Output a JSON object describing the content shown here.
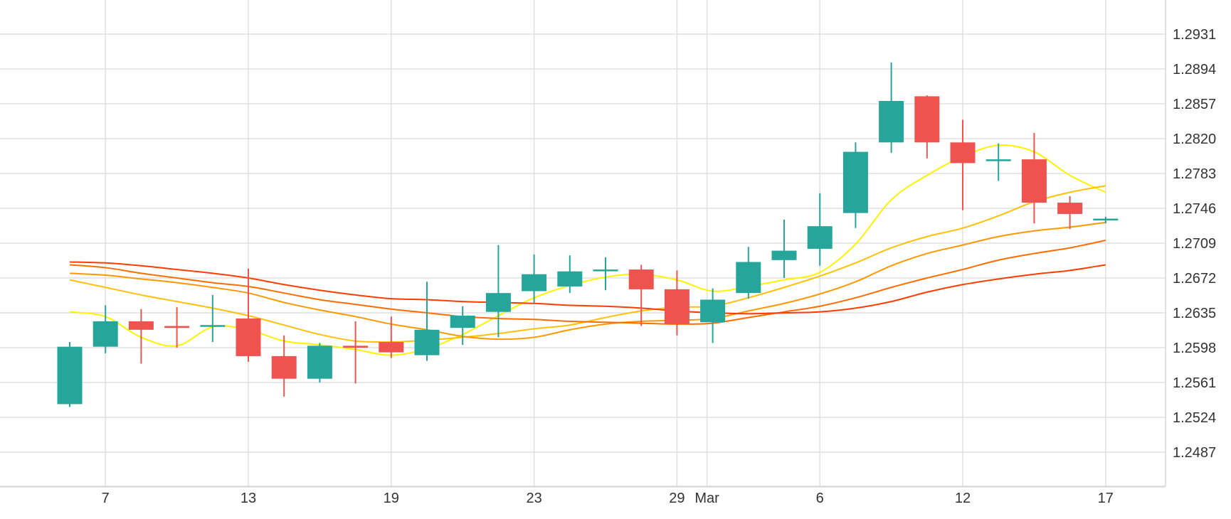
{
  "chart_data": {
    "type": "candlestick",
    "title": "",
    "xlabel": "",
    "ylabel": "",
    "ylim": [
      1.2447,
      1.2977
    ],
    "y_ticks": [
      "1.2931",
      "1.2894",
      "1.2857",
      "1.2820",
      "1.2783",
      "1.2746",
      "1.2709",
      "1.2672",
      "1.2635",
      "1.2598",
      "1.2561",
      "1.2524",
      "1.2487"
    ],
    "x_ticks": [
      {
        "label": "7",
        "index": 1
      },
      {
        "label": "13",
        "index": 5
      },
      {
        "label": "19",
        "index": 9
      },
      {
        "label": "23",
        "index": 13
      },
      {
        "label": "29",
        "index": 17
      },
      {
        "label": "Mar",
        "index": 18
      },
      {
        "label": "6",
        "index": 21
      },
      {
        "label": "12",
        "index": 25
      },
      {
        "label": "17",
        "index": 29
      }
    ],
    "grid": true,
    "colors": {
      "up": "#26a69a",
      "down": "#ef5350",
      "grid": "#e0e0e0"
    },
    "candles": [
      {
        "o": 1.2538,
        "h": 1.2604,
        "l": 1.2535,
        "c": 1.2599
      },
      {
        "o": 1.2599,
        "h": 1.2643,
        "l": 1.2592,
        "c": 1.2626
      },
      {
        "o": 1.2626,
        "h": 1.2639,
        "l": 1.2581,
        "c": 1.2617
      },
      {
        "o": 1.2621,
        "h": 1.2641,
        "l": 1.2598,
        "c": 1.2619
      },
      {
        "o": 1.2622,
        "h": 1.2654,
        "l": 1.2604,
        "c": 1.2622
      },
      {
        "o": 1.2629,
        "h": 1.2682,
        "l": 1.2583,
        "c": 1.2589
      },
      {
        "o": 1.2589,
        "h": 1.2611,
        "l": 1.2546,
        "c": 1.2565
      },
      {
        "o": 1.2565,
        "h": 1.2603,
        "l": 1.2561,
        "c": 1.26
      },
      {
        "o": 1.26,
        "h": 1.2626,
        "l": 1.256,
        "c": 1.2598
      },
      {
        "o": 1.2604,
        "h": 1.2631,
        "l": 1.2587,
        "c": 1.2593
      },
      {
        "o": 1.259,
        "h": 1.2668,
        "l": 1.2584,
        "c": 1.2617
      },
      {
        "o": 1.2619,
        "h": 1.2642,
        "l": 1.2601,
        "c": 1.2632
      },
      {
        "o": 1.2636,
        "h": 1.2707,
        "l": 1.2609,
        "c": 1.2656
      },
      {
        "o": 1.2658,
        "h": 1.2697,
        "l": 1.2645,
        "c": 1.2676
      },
      {
        "o": 1.2663,
        "h": 1.2696,
        "l": 1.2656,
        "c": 1.2679
      },
      {
        "o": 1.2681,
        "h": 1.2694,
        "l": 1.2659,
        "c": 1.2681
      },
      {
        "o": 1.2681,
        "h": 1.2686,
        "l": 1.2621,
        "c": 1.266
      },
      {
        "o": 1.266,
        "h": 1.268,
        "l": 1.2611,
        "c": 1.2623
      },
      {
        "o": 1.2625,
        "h": 1.2661,
        "l": 1.2603,
        "c": 1.2649
      },
      {
        "o": 1.2656,
        "h": 1.2705,
        "l": 1.265,
        "c": 1.2689
      },
      {
        "o": 1.2691,
        "h": 1.2734,
        "l": 1.2672,
        "c": 1.2701
      },
      {
        "o": 1.2703,
        "h": 1.2762,
        "l": 1.2685,
        "c": 1.2727
      },
      {
        "o": 1.2741,
        "h": 1.2816,
        "l": 1.2725,
        "c": 1.2806
      },
      {
        "o": 1.2816,
        "h": 1.2901,
        "l": 1.2805,
        "c": 1.286
      },
      {
        "o": 1.2865,
        "h": 1.2866,
        "l": 1.2799,
        "c": 1.2816
      },
      {
        "o": 1.2816,
        "h": 1.284,
        "l": 1.2744,
        "c": 1.2794
      },
      {
        "o": 1.2798,
        "h": 1.2815,
        "l": 1.2775,
        "c": 1.2798
      },
      {
        "o": 1.2798,
        "h": 1.2826,
        "l": 1.273,
        "c": 1.2752
      },
      {
        "o": 1.2752,
        "h": 1.2759,
        "l": 1.2724,
        "c": 1.274
      },
      {
        "o": 1.2734,
        "h": 1.2737,
        "l": 1.273,
        "c": 1.2735
      }
    ],
    "series": [
      {
        "color": "#fff200",
        "points": [
          [
            0,
            1.2636
          ],
          [
            1,
            1.2631
          ],
          [
            2,
            1.2609
          ],
          [
            3,
            1.26
          ],
          [
            4,
            1.262
          ],
          [
            5,
            1.2617
          ],
          [
            6,
            1.2605
          ],
          [
            7,
            1.2601
          ],
          [
            8,
            1.2596
          ],
          [
            9,
            1.259
          ],
          [
            10,
            1.2597
          ],
          [
            11,
            1.2612
          ],
          [
            12,
            1.2632
          ],
          [
            13,
            1.2651
          ],
          [
            14,
            1.2664
          ],
          [
            15,
            1.2673
          ],
          [
            16,
            1.2676
          ],
          [
            17,
            1.267
          ],
          [
            18,
            1.2658
          ],
          [
            19,
            1.2663
          ],
          [
            20,
            1.267
          ],
          [
            21,
            1.2678
          ],
          [
            22,
            1.2708
          ],
          [
            23,
            1.2755
          ],
          [
            24,
            1.2781
          ],
          [
            25,
            1.2801
          ],
          [
            26,
            1.2813
          ],
          [
            27,
            1.2806
          ],
          [
            28,
            1.2781
          ],
          [
            29,
            1.2763
          ]
        ]
      },
      {
        "color": "#ffc107",
        "points": [
          [
            0,
            1.267
          ],
          [
            1,
            1.2662
          ],
          [
            2,
            1.2654
          ],
          [
            3,
            1.2647
          ],
          [
            4,
            1.264
          ],
          [
            5,
            1.2632
          ],
          [
            6,
            1.2622
          ],
          [
            7,
            1.2612
          ],
          [
            8,
            1.2605
          ],
          [
            9,
            1.2604
          ],
          [
            10,
            1.2606
          ],
          [
            11,
            1.2609
          ],
          [
            12,
            1.2613
          ],
          [
            13,
            1.2618
          ],
          [
            14,
            1.2622
          ],
          [
            15,
            1.263
          ],
          [
            16,
            1.2637
          ],
          [
            17,
            1.2641
          ],
          [
            18,
            1.2642
          ],
          [
            19,
            1.2651
          ],
          [
            20,
            1.2662
          ],
          [
            21,
            1.2674
          ],
          [
            22,
            1.2688
          ],
          [
            23,
            1.2704
          ],
          [
            24,
            1.2716
          ],
          [
            25,
            1.2725
          ],
          [
            26,
            1.2738
          ],
          [
            27,
            1.2753
          ],
          [
            28,
            1.2763
          ],
          [
            29,
            1.277
          ]
        ]
      },
      {
        "color": "#ff9800",
        "points": [
          [
            0,
            1.2677
          ],
          [
            1,
            1.2675
          ],
          [
            2,
            1.2671
          ],
          [
            3,
            1.2667
          ],
          [
            4,
            1.2662
          ],
          [
            5,
            1.2656
          ],
          [
            6,
            1.2646
          ],
          [
            7,
            1.2638
          ],
          [
            8,
            1.2631
          ],
          [
            9,
            1.2623
          ],
          [
            10,
            1.2617
          ],
          [
            11,
            1.261
          ],
          [
            12,
            1.2607
          ],
          [
            13,
            1.2609
          ],
          [
            14,
            1.2617
          ],
          [
            15,
            1.2623
          ],
          [
            16,
            1.2626
          ],
          [
            17,
            1.2627
          ],
          [
            18,
            1.2629
          ],
          [
            19,
            1.2637
          ],
          [
            20,
            1.2645
          ],
          [
            21,
            1.2655
          ],
          [
            22,
            1.2668
          ],
          [
            23,
            1.2685
          ],
          [
            24,
            1.2698
          ],
          [
            25,
            1.2707
          ],
          [
            26,
            1.2716
          ],
          [
            27,
            1.2722
          ],
          [
            28,
            1.2726
          ],
          [
            29,
            1.2731
          ]
        ]
      },
      {
        "color": "#ff6d00",
        "points": [
          [
            0,
            1.2686
          ],
          [
            1,
            1.2683
          ],
          [
            2,
            1.2677
          ],
          [
            3,
            1.2672
          ],
          [
            4,
            1.2667
          ],
          [
            5,
            1.2663
          ],
          [
            6,
            1.2656
          ],
          [
            7,
            1.2649
          ],
          [
            8,
            1.2644
          ],
          [
            9,
            1.2639
          ],
          [
            10,
            1.2635
          ],
          [
            11,
            1.2631
          ],
          [
            12,
            1.2629
          ],
          [
            13,
            1.2628
          ],
          [
            14,
            1.2626
          ],
          [
            15,
            1.2625
          ],
          [
            16,
            1.2624
          ],
          [
            17,
            1.2623
          ],
          [
            18,
            1.2624
          ],
          [
            19,
            1.263
          ],
          [
            20,
            1.2636
          ],
          [
            21,
            1.2642
          ],
          [
            22,
            1.2651
          ],
          [
            23,
            1.2662
          ],
          [
            24,
            1.2672
          ],
          [
            25,
            1.2681
          ],
          [
            26,
            1.2691
          ],
          [
            27,
            1.2698
          ],
          [
            28,
            1.2704
          ],
          [
            29,
            1.2712
          ]
        ]
      },
      {
        "color": "#ff3d00",
        "points": [
          [
            0,
            1.2689
          ],
          [
            1,
            1.2688
          ],
          [
            2,
            1.2685
          ],
          [
            3,
            1.2681
          ],
          [
            4,
            1.2677
          ],
          [
            5,
            1.2672
          ],
          [
            6,
            1.2665
          ],
          [
            7,
            1.2659
          ],
          [
            8,
            1.2654
          ],
          [
            9,
            1.265
          ],
          [
            10,
            1.2649
          ],
          [
            11,
            1.2647
          ],
          [
            12,
            1.2646
          ],
          [
            13,
            1.2645
          ],
          [
            14,
            1.2643
          ],
          [
            15,
            1.2642
          ],
          [
            16,
            1.264
          ],
          [
            17,
            1.2637
          ],
          [
            18,
            1.2635
          ],
          [
            19,
            1.2634
          ],
          [
            20,
            1.2635
          ],
          [
            21,
            1.2636
          ],
          [
            22,
            1.264
          ],
          [
            23,
            1.2647
          ],
          [
            24,
            1.2657
          ],
          [
            25,
            1.2665
          ],
          [
            26,
            1.2671
          ],
          [
            27,
            1.2676
          ],
          [
            28,
            1.268
          ],
          [
            29,
            1.2686
          ]
        ]
      }
    ]
  }
}
